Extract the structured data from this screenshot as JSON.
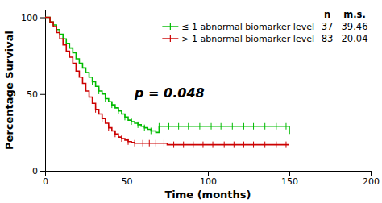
{
  "chart_data": {
    "type": "step",
    "xlabel": "Time (months)",
    "ylabel": "Percentage Survival",
    "xlim": [
      0,
      200
    ],
    "ylim": [
      0,
      105
    ],
    "xticks": [
      0,
      50,
      100,
      150,
      200
    ],
    "yticks": [
      0,
      50,
      100
    ],
    "grid": false,
    "legend": "upper right",
    "legend_columns": [
      "n",
      "m.s."
    ],
    "annotations": [
      {
        "text": "p = 0.048",
        "x": 55,
        "y": 48
      }
    ],
    "series": [
      {
        "name": "≤ 1 abnormal biomarker level",
        "color": "#00bb00",
        "n": 37,
        "ms": 39.46,
        "x": [
          0,
          3,
          5,
          7,
          9,
          11,
          13,
          15,
          17,
          19,
          21,
          23,
          25,
          27,
          29,
          31,
          33,
          35,
          37,
          39,
          41,
          43,
          45,
          47,
          49,
          51,
          53,
          55,
          57,
          59,
          61,
          63,
          65,
          68,
          70,
          115,
          150
        ],
        "values": [
          100,
          97,
          95,
          92,
          89,
          86,
          83,
          80,
          77,
          73,
          70,
          67,
          64,
          61,
          58,
          55,
          52,
          50,
          47,
          45,
          43,
          41,
          39,
          37,
          35,
          33,
          32,
          31,
          30,
          29,
          28,
          27,
          26,
          25,
          29,
          29,
          24
        ],
        "censor_times": [
          29,
          33,
          37,
          41,
          45,
          49,
          53,
          57,
          61,
          65,
          70,
          76,
          82,
          88,
          95,
          102,
          108,
          115,
          122,
          128,
          135,
          142,
          148
        ]
      },
      {
        "name": "> 1 abnormal biomarker level",
        "color": "#cc0000",
        "n": 83,
        "ms": 20.04,
        "x": [
          0,
          3,
          5,
          7,
          9,
          11,
          13,
          15,
          17,
          19,
          21,
          23,
          25,
          27,
          29,
          31,
          33,
          35,
          37,
          39,
          41,
          43,
          45,
          47,
          49,
          51,
          53,
          55,
          57,
          60,
          62,
          65,
          68,
          75,
          80,
          150
        ],
        "values": [
          100,
          97,
          94,
          90,
          86,
          82,
          78,
          74,
          70,
          65,
          61,
          57,
          52,
          48,
          44,
          40,
          37,
          34,
          31,
          28,
          26,
          24,
          22,
          21,
          20,
          19,
          18.5,
          18,
          18,
          18,
          18,
          18,
          18,
          17,
          17,
          17
        ],
        "censor_times": [
          27,
          31,
          35,
          39,
          43,
          47,
          51,
          55,
          60,
          64,
          68,
          73,
          79,
          85,
          91,
          97,
          103,
          110,
          116,
          122,
          128,
          135,
          142,
          148
        ]
      }
    ]
  }
}
